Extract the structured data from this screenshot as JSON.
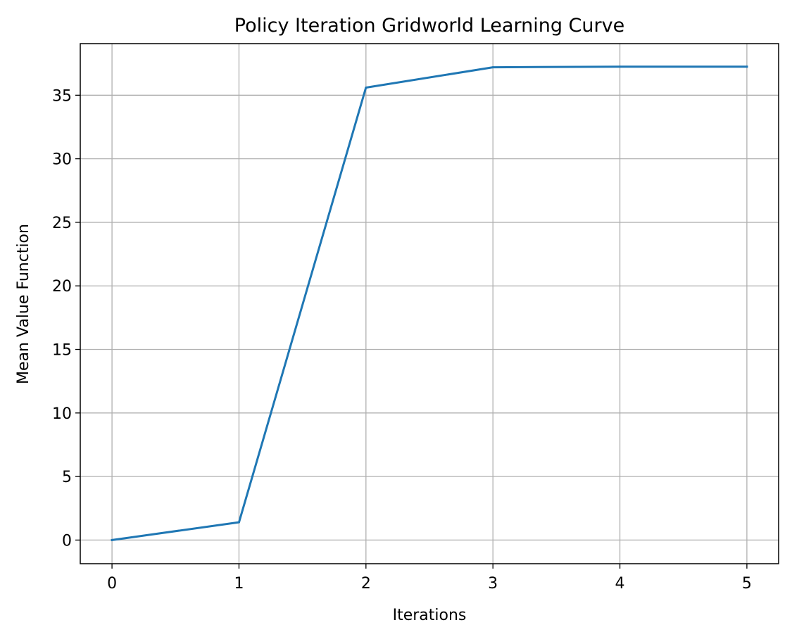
{
  "chart_data": {
    "type": "line",
    "title": "Policy Iteration Gridworld Learning Curve",
    "xlabel": "Iterations",
    "ylabel": "Mean Value Function",
    "x": [
      0,
      1,
      2,
      3,
      4,
      5
    ],
    "series": [
      {
        "values": [
          0.0,
          1.4,
          35.6,
          37.2,
          37.25,
          37.25
        ]
      }
    ],
    "xlim": [
      -0.25,
      5.25
    ],
    "ylim": [
      -1.86,
      39.06
    ],
    "xticks": [
      "0",
      "1",
      "2",
      "3",
      "4",
      "5"
    ],
    "yticks": [
      "0",
      "5",
      "10",
      "15",
      "20",
      "25",
      "30",
      "35"
    ],
    "grid": true,
    "line_color": "#1f77b4",
    "grid_color": "#b0b0b0"
  }
}
